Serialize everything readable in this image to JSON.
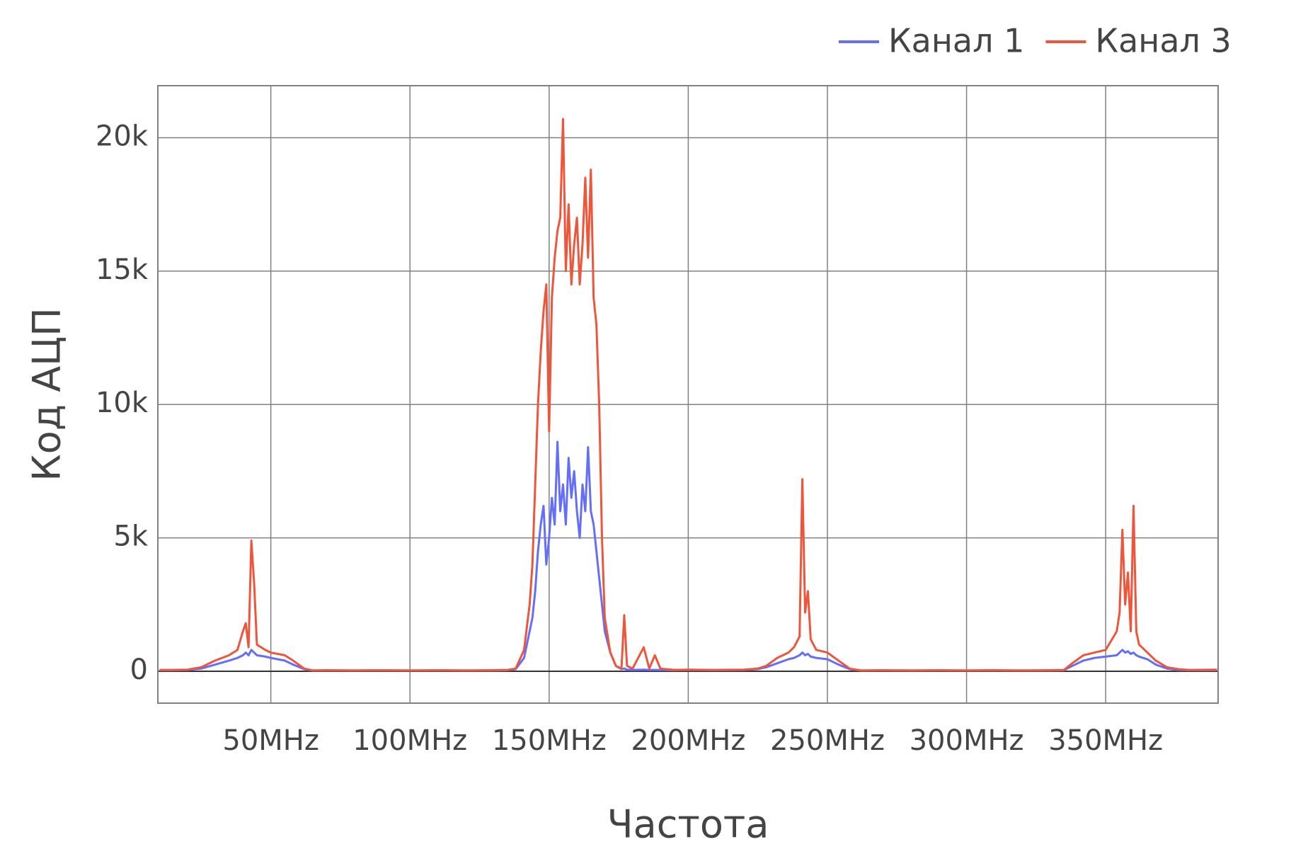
{
  "chart_data": {
    "type": "line",
    "x_title": "Частота",
    "y_title": "Код АЦП",
    "grid": true,
    "legend_position": "top-right",
    "xlim": [
      9.4,
      390.4
    ],
    "ylim": [
      -1195,
      21950
    ],
    "xticks": [
      {
        "value": 50,
        "label": "50MHz"
      },
      {
        "value": 100,
        "label": "100MHz"
      },
      {
        "value": 150,
        "label": "150MHz"
      },
      {
        "value": 200,
        "label": "200MHz"
      },
      {
        "value": 250,
        "label": "250MHz"
      },
      {
        "value": 300,
        "label": "300MHz"
      },
      {
        "value": 350,
        "label": "350MHz"
      }
    ],
    "yticks": [
      0,
      {
        "value": 5000,
        "label": "5k"
      },
      {
        "value": 10000,
        "label": "10k"
      },
      {
        "value": 15000,
        "label": "15k"
      },
      {
        "value": 20000,
        "label": "20k"
      }
    ],
    "x": [
      10,
      15,
      20,
      25,
      30,
      35,
      38,
      40,
      41,
      42,
      43,
      44,
      45,
      48,
      50,
      55,
      58,
      62,
      65,
      70,
      80,
      90,
      100,
      110,
      120,
      130,
      135,
      138,
      141,
      143,
      144,
      145,
      146,
      147,
      148,
      149,
      150,
      151,
      152,
      153,
      154,
      155,
      156,
      157,
      158,
      159,
      160,
      161,
      162,
      163,
      164,
      165,
      166,
      167,
      168,
      169,
      170,
      172,
      174,
      176,
      177,
      178,
      180,
      184,
      186,
      188,
      190,
      195,
      200,
      210,
      220,
      225,
      228,
      232,
      236,
      238,
      240,
      241,
      242,
      243,
      244,
      246,
      250,
      254,
      258,
      262,
      270,
      280,
      290,
      300,
      310,
      320,
      330,
      335,
      338,
      342,
      346,
      350,
      354,
      355,
      356,
      357,
      358,
      359,
      360,
      361,
      362,
      365,
      368,
      372,
      376,
      380,
      390
    ],
    "series": [
      {
        "name": "Канал 1",
        "color": "#636efa",
        "values": [
          40,
          40,
          50,
          100,
          250,
          400,
          500,
          600,
          700,
          600,
          800,
          700,
          600,
          550,
          500,
          400,
          250,
          80,
          30,
          30,
          30,
          30,
          30,
          30,
          30,
          30,
          40,
          80,
          500,
          1500,
          2000,
          3000,
          4500,
          5500,
          6200,
          4000,
          5000,
          6500,
          5500,
          8600,
          6000,
          7000,
          5500,
          8000,
          6500,
          7500,
          6000,
          5000,
          7000,
          6000,
          8400,
          6000,
          5500,
          4500,
          3500,
          2500,
          1500,
          700,
          200,
          80,
          100,
          60,
          50,
          60,
          50,
          50,
          50,
          40,
          50,
          40,
          50,
          80,
          150,
          300,
          450,
          500,
          600,
          700,
          600,
          650,
          550,
          500,
          450,
          250,
          80,
          30,
          30,
          30,
          30,
          30,
          30,
          30,
          30,
          40,
          200,
          400,
          500,
          550,
          600,
          700,
          800,
          700,
          750,
          650,
          700,
          600,
          550,
          450,
          250,
          100,
          50,
          40,
          40
        ]
      },
      {
        "name": "Канал 3",
        "color": "#ef553b",
        "values": [
          50,
          50,
          60,
          150,
          400,
          600,
          800,
          1500,
          1800,
          900,
          4900,
          3300,
          1000,
          800,
          700,
          600,
          400,
          100,
          30,
          40,
          30,
          40,
          30,
          40,
          30,
          40,
          50,
          100,
          800,
          2500,
          4000,
          7000,
          10000,
          12000,
          13500,
          14500,
          9000,
          14000,
          15500,
          16500,
          17000,
          20700,
          15000,
          17500,
          14500,
          16000,
          17000,
          14500,
          16000,
          18500,
          15500,
          18800,
          14000,
          13000,
          10000,
          5000,
          2000,
          700,
          200,
          100,
          2100,
          200,
          100,
          900,
          100,
          600,
          100,
          50,
          60,
          50,
          60,
          100,
          200,
          500,
          700,
          900,
          1300,
          7200,
          2200,
          3000,
          1200,
          800,
          700,
          400,
          100,
          30,
          40,
          30,
          40,
          30,
          40,
          30,
          40,
          50,
          300,
          600,
          700,
          800,
          1500,
          2200,
          5300,
          2500,
          3700,
          1500,
          6200,
          1500,
          1000,
          700,
          400,
          150,
          80,
          50,
          60
        ]
      }
    ]
  }
}
